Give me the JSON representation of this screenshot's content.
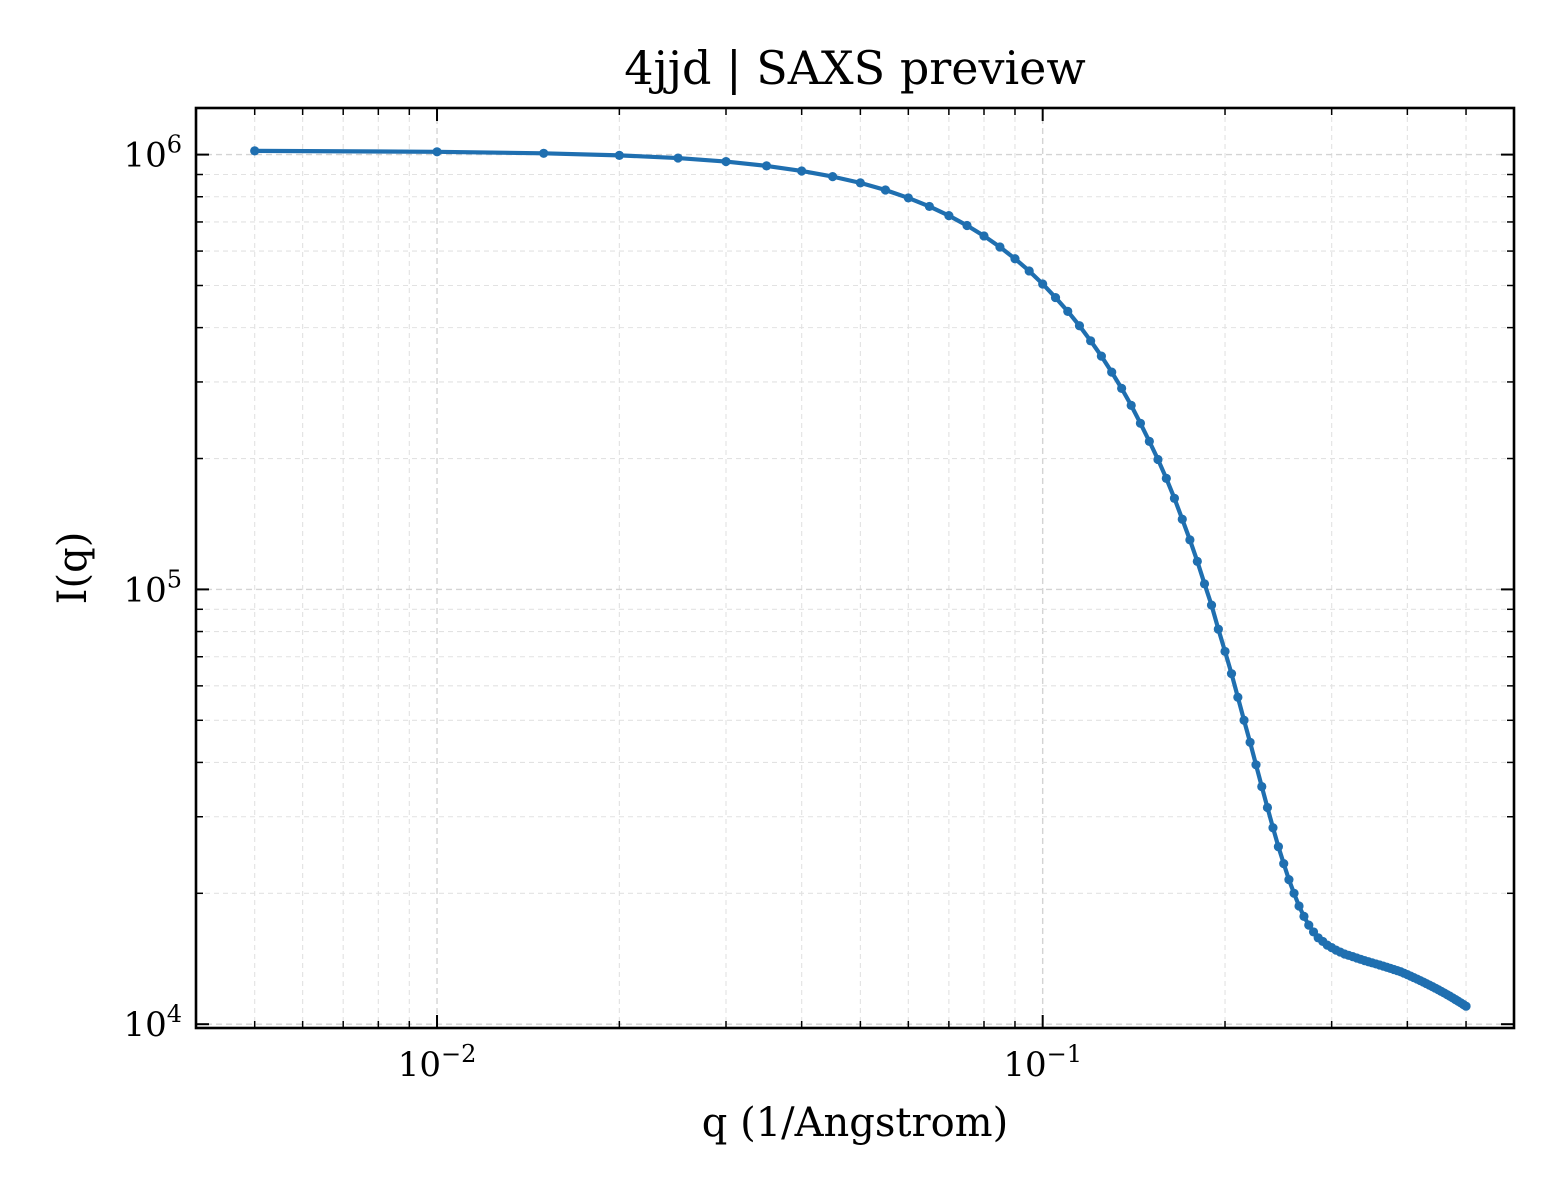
{
  "chart_data": {
    "type": "line",
    "title": "4jjd | SAXS preview",
    "xlabel": "q (1/Angstrom)",
    "ylabel": "I(q)",
    "xscale": "log",
    "yscale": "log",
    "xlim": [
      0.004,
      0.6
    ],
    "ylim": [
      9800,
      1280000
    ],
    "grid": true,
    "x_ticks": [
      {
        "value": 0.01,
        "base": "10",
        "exp": "−2"
      },
      {
        "value": 0.1,
        "base": "10",
        "exp": "−1"
      }
    ],
    "y_ticks": [
      {
        "value": 10000,
        "base": "10",
        "exp": "4"
      },
      {
        "value": 100000,
        "base": "10",
        "exp": "5"
      },
      {
        "value": 1000000,
        "base": "10",
        "exp": "6"
      }
    ],
    "series": [
      {
        "color": "#1f6fb0",
        "marker": "circle",
        "x": [
          0.005,
          0.01,
          0.015,
          0.02,
          0.025,
          0.03,
          0.035,
          0.04,
          0.045,
          0.05,
          0.055,
          0.06,
          0.065,
          0.07,
          0.075,
          0.08,
          0.085,
          0.09,
          0.095,
          0.1,
          0.105,
          0.11,
          0.115,
          0.12,
          0.125,
          0.13,
          0.135,
          0.14,
          0.145,
          0.15,
          0.155,
          0.16,
          0.165,
          0.17,
          0.175,
          0.18,
          0.185,
          0.19,
          0.195,
          0.2,
          0.205,
          0.21,
          0.215,
          0.22,
          0.225,
          0.23,
          0.235,
          0.24,
          0.245,
          0.25,
          0.255,
          0.26,
          0.265,
          0.27,
          0.275,
          0.28,
          0.285,
          0.29,
          0.295,
          0.3,
          0.305,
          0.31,
          0.315,
          0.32,
          0.325,
          0.33,
          0.335,
          0.34,
          0.345,
          0.35,
          0.355,
          0.36,
          0.365,
          0.37,
          0.375,
          0.38,
          0.385,
          0.39,
          0.395,
          0.4,
          0.405,
          0.41,
          0.415,
          0.42,
          0.425,
          0.43,
          0.435,
          0.44,
          0.445,
          0.45,
          0.455,
          0.46,
          0.465,
          0.47,
          0.475,
          0.48,
          0.485,
          0.49,
          0.495,
          0.5
        ],
        "y": [
          1020000,
          1015000,
          1007000,
          996000,
          982000,
          964000,
          942000,
          917000,
          890000,
          861000,
          829000,
          795000,
          760000,
          724000,
          687000,
          650000,
          613000,
          576000,
          540000,
          504000,
          469000,
          436000,
          404000,
          373000,
          344000,
          316000,
          290000,
          265000,
          241000,
          219000,
          199000,
          180000,
          162000,
          145000,
          130000,
          116000,
          103000,
          92000,
          81000,
          72000,
          64000,
          56500,
          50000,
          44500,
          39500,
          35200,
          31500,
          28300,
          25600,
          23400,
          21500,
          20000,
          18700,
          17700,
          16900,
          16300,
          15800,
          15500,
          15200,
          15000,
          14800,
          14650,
          14500,
          14400,
          14300,
          14200,
          14100,
          14000,
          13920,
          13840,
          13760,
          13680,
          13600,
          13520,
          13440,
          13360,
          13280,
          13200,
          13100,
          13000,
          12900,
          12800,
          12700,
          12600,
          12500,
          12400,
          12300,
          12200,
          12100,
          12000,
          11900,
          11800,
          11700,
          11600,
          11500,
          11400,
          11300,
          11200,
          11100,
          11000
        ]
      }
    ]
  }
}
